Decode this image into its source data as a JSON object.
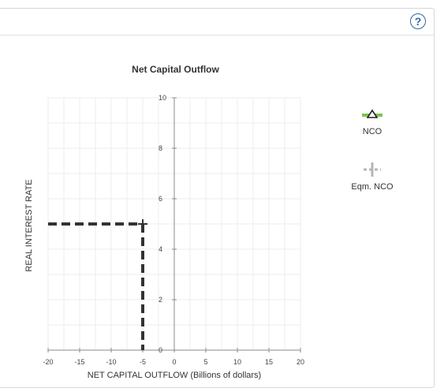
{
  "help": {
    "label": "?"
  },
  "chart_data": {
    "type": "line",
    "title": "Net Capital Outflow",
    "xlabel": "NET CAPITAL OUTFLOW (Billions of dollars)",
    "ylabel": "REAL INTEREST RATE",
    "xlim": [
      -20,
      20
    ],
    "ylim": [
      0,
      10
    ],
    "x_ticks": [
      -20,
      -15,
      -10,
      -5,
      0,
      5,
      10,
      15,
      20
    ],
    "y_ticks": [
      0,
      2,
      4,
      6,
      8,
      10
    ],
    "grid": true,
    "series": [
      {
        "name": "Eqm. NCO",
        "points": [
          {
            "x": -5,
            "y": 5
          }
        ],
        "dashed_guides": true,
        "color": "#333333"
      }
    ],
    "legend": {
      "placement": "right",
      "items": [
        {
          "label": "NCO",
          "color": "#7cc44b",
          "marker": "triangle"
        },
        {
          "label": "Eqm. NCO",
          "color": "#b5b5b5",
          "marker": "plus"
        }
      ]
    }
  }
}
